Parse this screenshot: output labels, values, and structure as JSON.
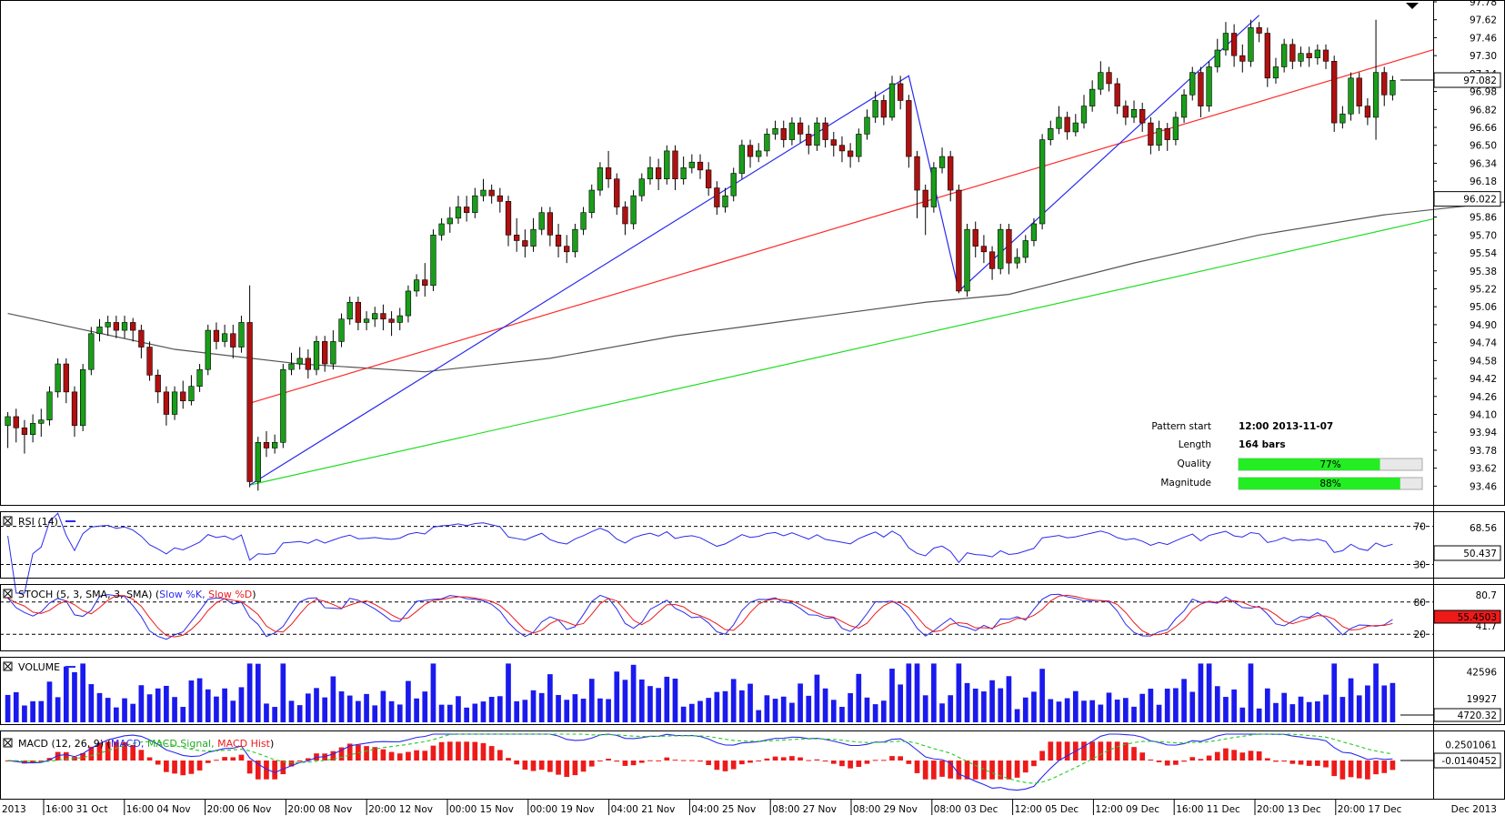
{
  "chart_data": {
    "type": "candlestick",
    "price_axis": {
      "ticks": [
        "97.78",
        "97.62",
        "97.46",
        "97.30",
        "97.14",
        "96.98",
        "96.82",
        "96.66",
        "96.50",
        "96.34",
        "96.18",
        "96.02",
        "95.86",
        "95.70",
        "95.54",
        "95.38",
        "95.22",
        "95.06",
        "94.90",
        "94.74",
        "94.58",
        "94.42",
        "94.26",
        "94.10",
        "93.94",
        "93.78",
        "93.62",
        "93.46"
      ],
      "ylim": [
        93.39,
        97.78
      ],
      "current_price": "97.082",
      "sma_value": "96.022"
    },
    "time_axis": {
      "labels": [
        "2013",
        "16:00 31 Oct",
        "16:00 04 Nov",
        "20:00 06 Nov",
        "20:00 08 Nov",
        "20:00 12 Nov",
        "00:00 15 Nov",
        "00:00 19 Nov",
        "04:00 21 Nov",
        "04:00 25 Nov",
        "08:00 27 Nov",
        "08:00 29 Nov",
        "08:00 03 Dec",
        "12:00 05 Dec",
        "12:00 09 Dec",
        "16:00 11 Dec",
        "20:00 13 Dec",
        "20:00 17 Dec",
        "Dec 2013"
      ]
    },
    "channel": {
      "upper_line": [
        [
          29,
          94.2
        ],
        [
          191,
          97.8
        ]
      ],
      "lower_line": [
        [
          29,
          93.47
        ],
        [
          191,
          96.18
        ]
      ]
    },
    "pattern_zigzag": [
      [
        29,
        93.47
      ],
      [
        108,
        97.12
      ],
      [
        114,
        95.2
      ],
      [
        150,
        97.66
      ]
    ],
    "sma_line": [
      [
        0,
        95.0
      ],
      [
        20,
        94.68
      ],
      [
        35,
        94.55
      ],
      [
        50,
        94.48
      ],
      [
        65,
        94.6
      ],
      [
        80,
        94.8
      ],
      [
        95,
        94.95
      ],
      [
        110,
        95.1
      ],
      [
        120,
        95.17
      ],
      [
        135,
        95.45
      ],
      [
        150,
        95.7
      ],
      [
        165,
        95.88
      ],
      [
        180,
        96.0
      ],
      [
        191,
        96.02
      ]
    ],
    "candles": [
      [
        94.0,
        94.08,
        94.12,
        93.8
      ],
      [
        94.08,
        93.98,
        94.15,
        93.85
      ],
      [
        93.98,
        93.92,
        94.05,
        93.75
      ],
      [
        93.92,
        94.02,
        94.1,
        93.85
      ],
      [
        94.02,
        94.05,
        94.15,
        93.9
      ],
      [
        94.05,
        94.3,
        94.35,
        94.0
      ],
      [
        94.3,
        94.55,
        94.6,
        94.25
      ],
      [
        94.55,
        94.3,
        94.6,
        94.2
      ],
      [
        94.3,
        94.0,
        94.35,
        93.9
      ],
      [
        94.0,
        94.5,
        94.55,
        93.95
      ],
      [
        94.5,
        94.82,
        94.88,
        94.45
      ],
      [
        94.82,
        94.88,
        94.95,
        94.75
      ],
      [
        94.88,
        94.92,
        94.98,
        94.8
      ],
      [
        94.92,
        94.85,
        94.98,
        94.78
      ],
      [
        94.85,
        94.92,
        94.98,
        94.78
      ],
      [
        94.92,
        94.85,
        94.96,
        94.75
      ],
      [
        94.85,
        94.7,
        94.9,
        94.6
      ],
      [
        94.7,
        94.45,
        94.75,
        94.4
      ],
      [
        94.45,
        94.3,
        94.5,
        94.2
      ],
      [
        94.3,
        94.1,
        94.35,
        94.0
      ],
      [
        94.1,
        94.3,
        94.35,
        94.05
      ],
      [
        94.3,
        94.22,
        94.4,
        94.15
      ],
      [
        94.22,
        94.35,
        94.45,
        94.18
      ],
      [
        94.35,
        94.5,
        94.55,
        94.3
      ],
      [
        94.5,
        94.85,
        94.9,
        94.45
      ],
      [
        94.85,
        94.75,
        94.92,
        94.68
      ],
      [
        94.75,
        94.82,
        94.9,
        94.7
      ],
      [
        94.82,
        94.7,
        94.9,
        94.6
      ],
      [
        94.7,
        94.92,
        94.98,
        94.65
      ],
      [
        94.92,
        93.5,
        95.25,
        93.45
      ],
      [
        93.5,
        93.85,
        93.9,
        93.42
      ],
      [
        93.85,
        93.8,
        93.95,
        93.72
      ],
      [
        93.8,
        93.85,
        93.92,
        93.75
      ],
      [
        93.85,
        94.5,
        94.55,
        93.8
      ],
      [
        94.5,
        94.55,
        94.65,
        94.45
      ],
      [
        94.55,
        94.6,
        94.7,
        94.5
      ],
      [
        94.6,
        94.5,
        94.68,
        94.42
      ],
      [
        94.5,
        94.75,
        94.8,
        94.45
      ],
      [
        94.75,
        94.55,
        94.8,
        94.48
      ],
      [
        94.55,
        94.75,
        94.85,
        94.5
      ],
      [
        94.75,
        94.95,
        95.0,
        94.7
      ],
      [
        94.95,
        95.1,
        95.15,
        94.9
      ],
      [
        95.1,
        94.92,
        95.15,
        94.85
      ],
      [
        94.92,
        94.95,
        95.02,
        94.85
      ],
      [
        94.95,
        95.0,
        95.06,
        94.88
      ],
      [
        95.0,
        94.95,
        95.08,
        94.85
      ],
      [
        94.95,
        94.92,
        95.02,
        94.8
      ],
      [
        94.92,
        94.98,
        95.05,
        94.85
      ],
      [
        94.98,
        95.2,
        95.25,
        94.92
      ],
      [
        95.2,
        95.3,
        95.35,
        95.15
      ],
      [
        95.3,
        95.25,
        95.45,
        95.15
      ],
      [
        95.25,
        95.7,
        95.75,
        95.2
      ],
      [
        95.7,
        95.8,
        95.85,
        95.65
      ],
      [
        95.8,
        95.85,
        95.95,
        95.72
      ],
      [
        95.85,
        95.95,
        96.05,
        95.8
      ],
      [
        95.95,
        95.9,
        96.05,
        95.82
      ],
      [
        95.9,
        96.05,
        96.12,
        95.85
      ],
      [
        96.05,
        96.1,
        96.2,
        96.0
      ],
      [
        96.1,
        96.05,
        96.15,
        95.98
      ],
      [
        96.05,
        96.0,
        96.12,
        95.9
      ],
      [
        96.0,
        95.7,
        96.05,
        95.6
      ],
      [
        95.7,
        95.65,
        95.85,
        95.55
      ],
      [
        95.65,
        95.6,
        95.75,
        95.5
      ],
      [
        95.6,
        95.75,
        95.85,
        95.55
      ],
      [
        95.75,
        95.9,
        95.95,
        95.7
      ],
      [
        95.9,
        95.7,
        95.95,
        95.6
      ],
      [
        95.7,
        95.6,
        95.8,
        95.5
      ],
      [
        95.6,
        95.55,
        95.7,
        95.45
      ],
      [
        95.55,
        95.75,
        95.8,
        95.5
      ],
      [
        95.75,
        95.9,
        95.95,
        95.7
      ],
      [
        95.9,
        96.1,
        96.15,
        95.85
      ],
      [
        96.1,
        96.3,
        96.35,
        96.05
      ],
      [
        96.3,
        96.2,
        96.45,
        96.12
      ],
      [
        96.2,
        95.95,
        96.25,
        95.88
      ],
      [
        95.95,
        95.8,
        96.0,
        95.7
      ],
      [
        95.8,
        96.05,
        96.1,
        95.75
      ],
      [
        96.05,
        96.2,
        96.25,
        96.0
      ],
      [
        96.2,
        96.3,
        96.4,
        96.15
      ],
      [
        96.3,
        96.2,
        96.38,
        96.1
      ],
      [
        96.2,
        96.45,
        96.5,
        96.15
      ],
      [
        96.45,
        96.2,
        96.5,
        96.1
      ],
      [
        96.2,
        96.3,
        96.4,
        96.15
      ],
      [
        96.3,
        96.35,
        96.42,
        96.25
      ],
      [
        96.35,
        96.28,
        96.42,
        96.2
      ],
      [
        96.28,
        96.12,
        96.35,
        96.05
      ],
      [
        96.12,
        95.95,
        96.18,
        95.88
      ],
      [
        95.95,
        96.05,
        96.12,
        95.9
      ],
      [
        96.05,
        96.25,
        96.3,
        96.0
      ],
      [
        96.25,
        96.5,
        96.55,
        96.2
      ],
      [
        96.5,
        96.4,
        96.55,
        96.3
      ],
      [
        96.4,
        96.45,
        96.52,
        96.35
      ],
      [
        96.45,
        96.6,
        96.65,
        96.4
      ],
      [
        96.6,
        96.65,
        96.72,
        96.55
      ],
      [
        96.65,
        96.55,
        96.72,
        96.48
      ],
      [
        96.55,
        96.7,
        96.75,
        96.5
      ],
      [
        96.7,
        96.6,
        96.75,
        96.52
      ],
      [
        96.6,
        96.5,
        96.68,
        96.42
      ],
      [
        96.5,
        96.7,
        96.75,
        96.45
      ],
      [
        96.7,
        96.55,
        96.75,
        96.48
      ],
      [
        96.55,
        96.5,
        96.62,
        96.4
      ],
      [
        96.5,
        96.45,
        96.58,
        96.35
      ],
      [
        96.45,
        96.4,
        96.52,
        96.3
      ],
      [
        96.4,
        96.6,
        96.65,
        96.35
      ],
      [
        96.6,
        96.75,
        96.82,
        96.55
      ],
      [
        96.75,
        96.9,
        96.98,
        96.7
      ],
      [
        96.9,
        96.75,
        96.95,
        96.68
      ],
      [
        96.75,
        97.05,
        97.12,
        96.72
      ],
      [
        97.05,
        96.9,
        97.12,
        96.82
      ],
      [
        96.9,
        96.4,
        96.95,
        96.3
      ],
      [
        96.4,
        96.1,
        96.45,
        95.85
      ],
      [
        96.1,
        95.95,
        96.15,
        95.7
      ],
      [
        95.95,
        96.3,
        96.35,
        95.9
      ],
      [
        96.3,
        96.4,
        96.48,
        96.25
      ],
      [
        96.4,
        96.1,
        96.45,
        96.0
      ],
      [
        96.1,
        95.2,
        96.15,
        95.18
      ],
      [
        95.2,
        95.75,
        95.8,
        95.15
      ],
      [
        95.75,
        95.6,
        95.82,
        95.5
      ],
      [
        95.6,
        95.55,
        95.7,
        95.45
      ],
      [
        95.55,
        95.4,
        95.6,
        95.3
      ],
      [
        95.4,
        95.75,
        95.8,
        95.35
      ],
      [
        95.75,
        95.45,
        95.8,
        95.35
      ],
      [
        95.45,
        95.5,
        95.58,
        95.4
      ],
      [
        95.5,
        95.65,
        95.7,
        95.45
      ],
      [
        95.65,
        95.8,
        95.85,
        95.6
      ],
      [
        95.8,
        96.55,
        96.6,
        95.75
      ],
      [
        96.55,
        96.65,
        96.72,
        96.5
      ],
      [
        96.65,
        96.75,
        96.85,
        96.6
      ],
      [
        96.75,
        96.62,
        96.8,
        96.55
      ],
      [
        96.62,
        96.7,
        96.78,
        96.58
      ],
      [
        96.7,
        96.85,
        96.95,
        96.65
      ],
      [
        96.85,
        97.0,
        97.08,
        96.8
      ],
      [
        97.0,
        97.15,
        97.25,
        96.95
      ],
      [
        97.15,
        97.05,
        97.2,
        96.98
      ],
      [
        97.05,
        96.85,
        97.1,
        96.78
      ],
      [
        96.85,
        96.75,
        96.9,
        96.68
      ],
      [
        96.75,
        96.82,
        96.9,
        96.7
      ],
      [
        96.82,
        96.7,
        96.88,
        96.62
      ],
      [
        96.7,
        96.5,
        96.75,
        96.42
      ],
      [
        96.5,
        96.65,
        96.72,
        96.45
      ],
      [
        96.65,
        96.55,
        96.7,
        96.45
      ],
      [
        96.55,
        96.75,
        96.8,
        96.5
      ],
      [
        96.75,
        96.95,
        97.0,
        96.7
      ],
      [
        96.95,
        97.15,
        97.2,
        96.9
      ],
      [
        97.15,
        96.85,
        97.2,
        96.75
      ],
      [
        96.85,
        97.2,
        97.25,
        96.8
      ],
      [
        97.2,
        97.35,
        97.45,
        97.15
      ],
      [
        97.35,
        97.5,
        97.6,
        97.3
      ],
      [
        97.5,
        97.3,
        97.58,
        97.2
      ],
      [
        97.3,
        97.25,
        97.4,
        97.15
      ],
      [
        97.25,
        97.55,
        97.62,
        97.2
      ],
      [
        97.55,
        97.5,
        97.6,
        97.42
      ],
      [
        97.5,
        97.1,
        97.55,
        97.02
      ],
      [
        97.1,
        97.2,
        97.28,
        97.05
      ],
      [
        97.2,
        97.4,
        97.45,
        97.15
      ],
      [
        97.4,
        97.25,
        97.45,
        97.18
      ],
      [
        97.25,
        97.32,
        97.38,
        97.2
      ],
      [
        97.32,
        97.28,
        97.38,
        97.2
      ],
      [
        97.28,
        97.35,
        97.4,
        97.22
      ],
      [
        97.35,
        97.25,
        97.4,
        97.18
      ],
      [
        97.25,
        96.7,
        97.3,
        96.62
      ],
      [
        96.7,
        96.78,
        96.85,
        96.65
      ],
      [
        96.78,
        97.1,
        97.15,
        96.72
      ],
      [
        97.1,
        96.85,
        97.15,
        96.78
      ],
      [
        96.85,
        96.75,
        96.92,
        96.68
      ],
      [
        96.75,
        97.15,
        97.62,
        96.55
      ],
      [
        97.15,
        96.95,
        97.2,
        96.85
      ],
      [
        96.95,
        97.08,
        97.12,
        96.9
      ]
    ],
    "pattern_info": {
      "pattern_start_label": "Pattern start",
      "pattern_start_value": "12:00 2013-11-07",
      "length_label": "Length",
      "length_value": "164 bars",
      "quality_label": "Quality",
      "quality_value": "77%",
      "quality_fraction": 0.77,
      "magnitude_label": "Magnitude",
      "magnitude_value": "88%",
      "magnitude_fraction": 0.88
    },
    "rsi_panel": {
      "title": "RSI (14)",
      "levels": [
        "70",
        "30"
      ],
      "tick": "68.56",
      "current": "50.437",
      "ylim": [
        20,
        82
      ]
    },
    "stoch_panel": {
      "title_prefix": "STOCH (5, 3, SMA, 3, SMA)",
      "k_label": "Slow %K,",
      "d_label": "Slow %D",
      "levels": [
        "80",
        "20"
      ],
      "tick": "80.7",
      "hidden_tick": "41.7",
      "current": "55.4503",
      "ylim": [
        0,
        100
      ]
    },
    "volume_panel": {
      "title": "VOLUME",
      "ticks": [
        "42596",
        "19927"
      ],
      "current": "4720.32",
      "ymax": 52000
    },
    "macd_panel": {
      "title_prefix": "MACD (12, 26, 9)",
      "macd_label": "MACD,",
      "signal_label": "MACD Signal,",
      "hist_label": "MACD Hist",
      "ticks": [
        "0.2501061"
      ],
      "current": "-0.0140452",
      "ylim": [
        -0.55,
        0.42
      ]
    },
    "colors": {
      "bull": "#1a9e1a",
      "bear": "#b01010",
      "upper_line": "#ff2a2a",
      "lower_line": "#22dd22",
      "pattern": "#2a2aee",
      "sma": "#555555",
      "volume": "#1a1aee",
      "rsi": "#2a2aee",
      "stoch_k": "#2a2aee",
      "stoch_d": "#ee1a1a",
      "macd": "#2a2aee",
      "macd_signal": "#22cc22",
      "macd_hist": "#ee1a1a",
      "bar_fill": "#22ee22"
    }
  }
}
